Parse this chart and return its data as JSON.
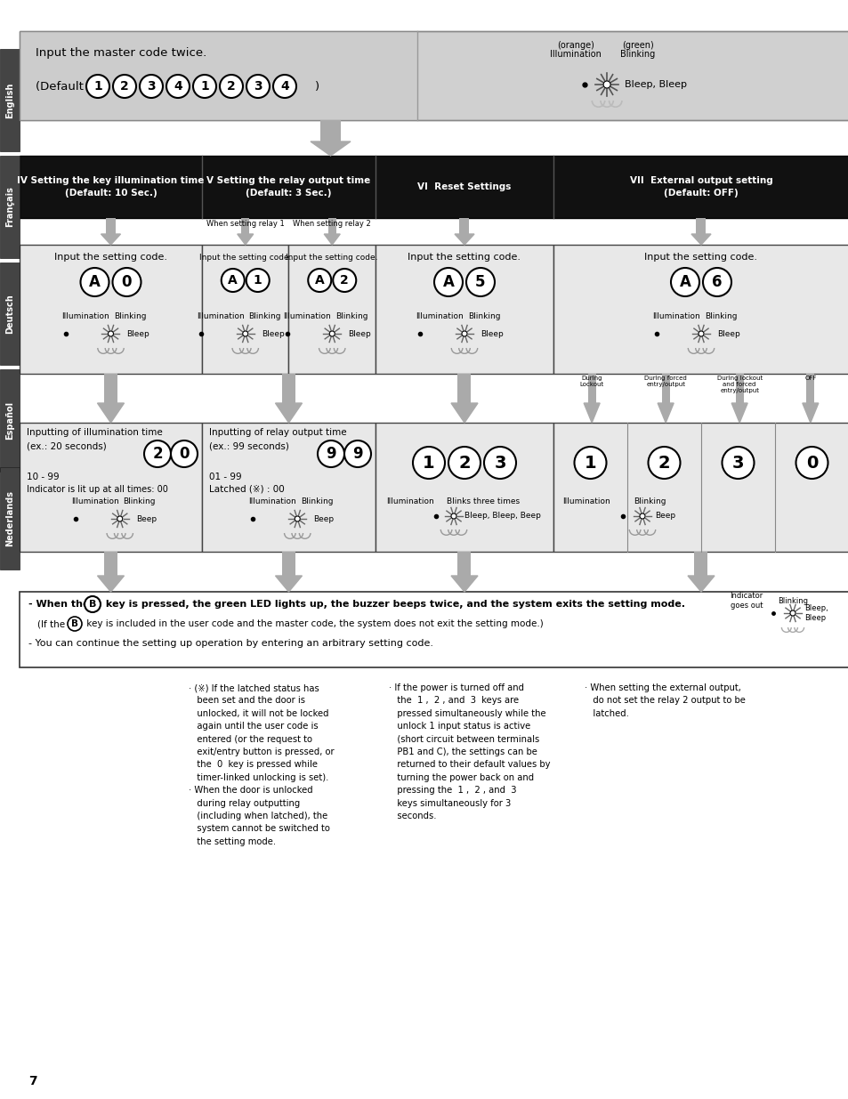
{
  "page_bg": "#ffffff",
  "sidebar_labels": [
    "English",
    "Français",
    "Deutsch",
    "Español",
    "Nederlands"
  ],
  "col_headers": [
    "IV Setting the key illumination time\n(Default: 10 Sec.)",
    "V Setting the relay output time\n(Default: 3 Sec.)",
    "VI  Reset Settings",
    "VII  External output setting\n(Default: OFF)"
  ],
  "col4_labels": [
    "During\nLockout",
    "During forced\nentry/output",
    "During lockout\nand forced\nentry/output",
    "OFF"
  ],
  "page_number": "7"
}
